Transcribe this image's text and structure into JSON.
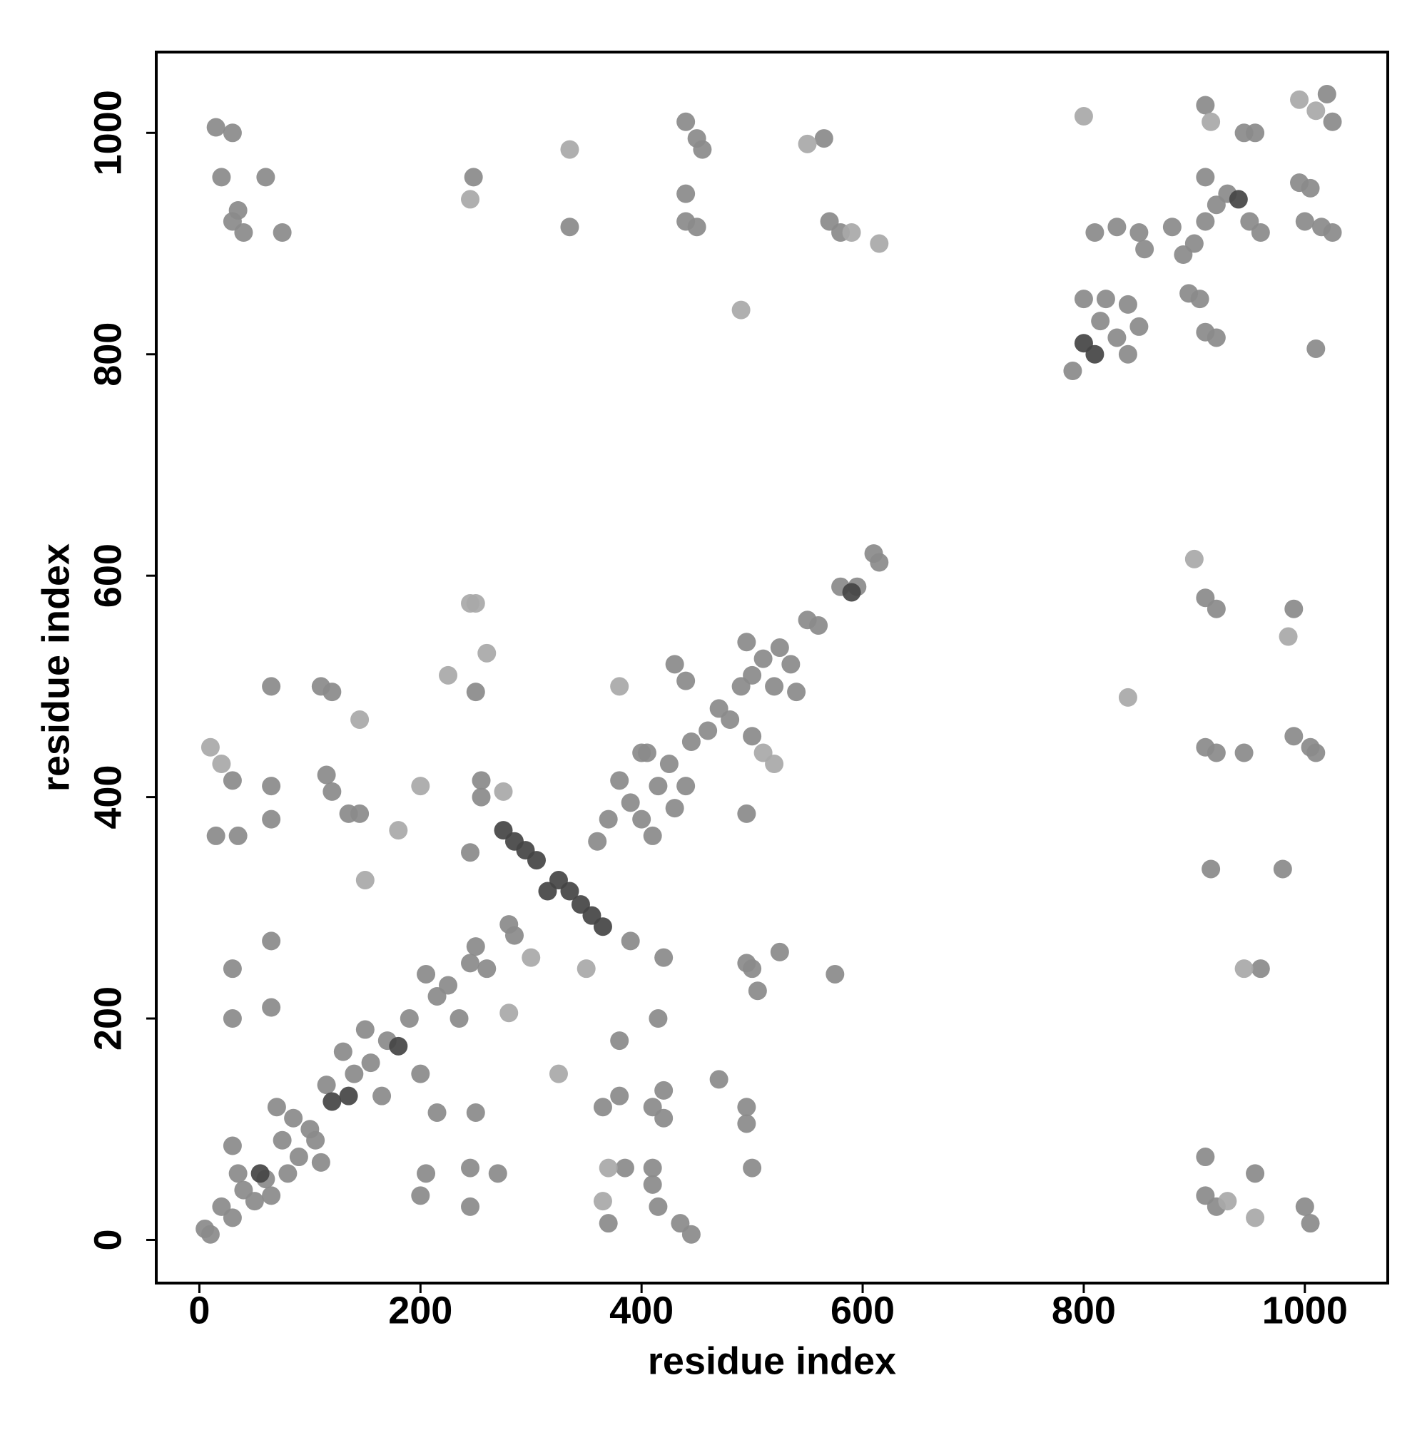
{
  "chart_data": {
    "type": "scatter",
    "xlabel": "residue index",
    "ylabel": "residue index",
    "xlim": [
      -39,
      1075
    ],
    "ylim": [
      -39,
      1073
    ],
    "xticks": [
      0,
      200,
      400,
      600,
      800,
      1000
    ],
    "yticks": [
      0,
      200,
      400,
      600,
      800,
      1000
    ],
    "series": [
      {
        "color": "#8a8a8a",
        "x": [
          5,
          10,
          20,
          30,
          30,
          35,
          40,
          50,
          60,
          65,
          70,
          75,
          80,
          85,
          90,
          100,
          105,
          110,
          115,
          130,
          140,
          150,
          155,
          165,
          170,
          190,
          200,
          205,
          215,
          225,
          235,
          245,
          250,
          260,
          280,
          285,
          30,
          30,
          65,
          65,
          65,
          65,
          65,
          30,
          15,
          35,
          110,
          120,
          115,
          120,
          135,
          145,
          215,
          205,
          200,
          245,
          245,
          250,
          270,
          245,
          255,
          255,
          250,
          365,
          370,
          380,
          380,
          385,
          390,
          410,
          410,
          410,
          415,
          420,
          415,
          420,
          420,
          435,
          445,
          470,
          495,
          495,
          500,
          495,
          500,
          505,
          525,
          575,
          360,
          370,
          380,
          390,
          400,
          405,
          415,
          425,
          430,
          440,
          445,
          460,
          470,
          480,
          490,
          495,
          500,
          510,
          520,
          525,
          535,
          540,
          550,
          560,
          580,
          595,
          610,
          615,
          400,
          410,
          430,
          440,
          495,
          500,
          15,
          30,
          20,
          30,
          40,
          35,
          60,
          75,
          248,
          335,
          440,
          450,
          455,
          440,
          450,
          440,
          565,
          570,
          580,
          790,
          815,
          820,
          830,
          840,
          850,
          840,
          800,
          810,
          830,
          850,
          855,
          880,
          890,
          900,
          910,
          910,
          920,
          930,
          950,
          960,
          895,
          905,
          910,
          920,
          910,
          945,
          955,
          1025,
          1020,
          995,
          1005,
          1000,
          1015,
          1025,
          1010,
          910,
          920,
          990,
          910,
          920,
          945,
          990,
          1005,
          1010,
          915,
          980,
          960,
          910,
          910,
          920,
          955,
          1000,
          1005
        ],
        "y": [
          10,
          5,
          30,
          20,
          85,
          60,
          45,
          35,
          55,
          40,
          120,
          90,
          60,
          110,
          75,
          100,
          90,
          70,
          140,
          170,
          150,
          190,
          160,
          130,
          180,
          200,
          150,
          240,
          220,
          230,
          200,
          250,
          265,
          245,
          285,
          275,
          245,
          200,
          270,
          210,
          380,
          410,
          500,
          415,
          365,
          365,
          500,
          495,
          420,
          405,
          385,
          385,
          115,
          60,
          40,
          30,
          65,
          115,
          60,
          350,
          400,
          415,
          495,
          120,
          15,
          130,
          180,
          65,
          270,
          120,
          65,
          50,
          30,
          255,
          200,
          110,
          135,
          15,
          5,
          145,
          120,
          105,
          65,
          250,
          245,
          225,
          260,
          240,
          360,
          380,
          415,
          395,
          380,
          440,
          410,
          430,
          390,
          410,
          450,
          460,
          480,
          470,
          500,
          540,
          510,
          525,
          500,
          535,
          520,
          495,
          560,
          555,
          590,
          590,
          620,
          612,
          440,
          365,
          520,
          505,
          385,
          455,
          1005,
          1000,
          960,
          920,
          910,
          930,
          960,
          910,
          960,
          915,
          1010,
          995,
          985,
          920,
          915,
          945,
          995,
          920,
          910,
          785,
          830,
          850,
          815,
          845,
          825,
          800,
          850,
          910,
          915,
          910,
          895,
          915,
          890,
          900,
          920,
          960,
          935,
          945,
          920,
          910,
          855,
          850,
          820,
          815,
          1025,
          1000,
          1000,
          1010,
          1035,
          955,
          950,
          920,
          915,
          910,
          805,
          580,
          570,
          570,
          445,
          440,
          440,
          455,
          445,
          440,
          335,
          335,
          245,
          75,
          40,
          30,
          60,
          30,
          15
        ]
      },
      {
        "color": "#a8a8a8",
        "x": [
          10,
          20,
          245,
          250,
          225,
          260,
          275,
          380,
          490,
          800,
          840,
          985,
          900,
          945,
          325,
          350,
          300,
          280,
          510,
          520,
          615,
          590,
          995,
          1010,
          915,
          370,
          365,
          930,
          955,
          200,
          180,
          150,
          145,
          550,
          245,
          335
        ],
        "y": [
          445,
          430,
          575,
          575,
          510,
          530,
          405,
          500,
          840,
          1015,
          490,
          545,
          615,
          245,
          150,
          245,
          255,
          205,
          440,
          430,
          900,
          910,
          1030,
          1020,
          1010,
          65,
          35,
          35,
          20,
          410,
          370,
          325,
          470,
          990,
          940,
          985
        ]
      },
      {
        "color": "#444444",
        "x": [
          275,
          285,
          295,
          305,
          315,
          325,
          335,
          345,
          355,
          365,
          800,
          810,
          120,
          180,
          940,
          590,
          55,
          135
        ],
        "y": [
          370,
          360,
          352,
          343,
          315,
          325,
          315,
          303,
          293,
          283,
          810,
          800,
          125,
          175,
          940,
          585,
          60,
          130
        ]
      }
    ]
  }
}
